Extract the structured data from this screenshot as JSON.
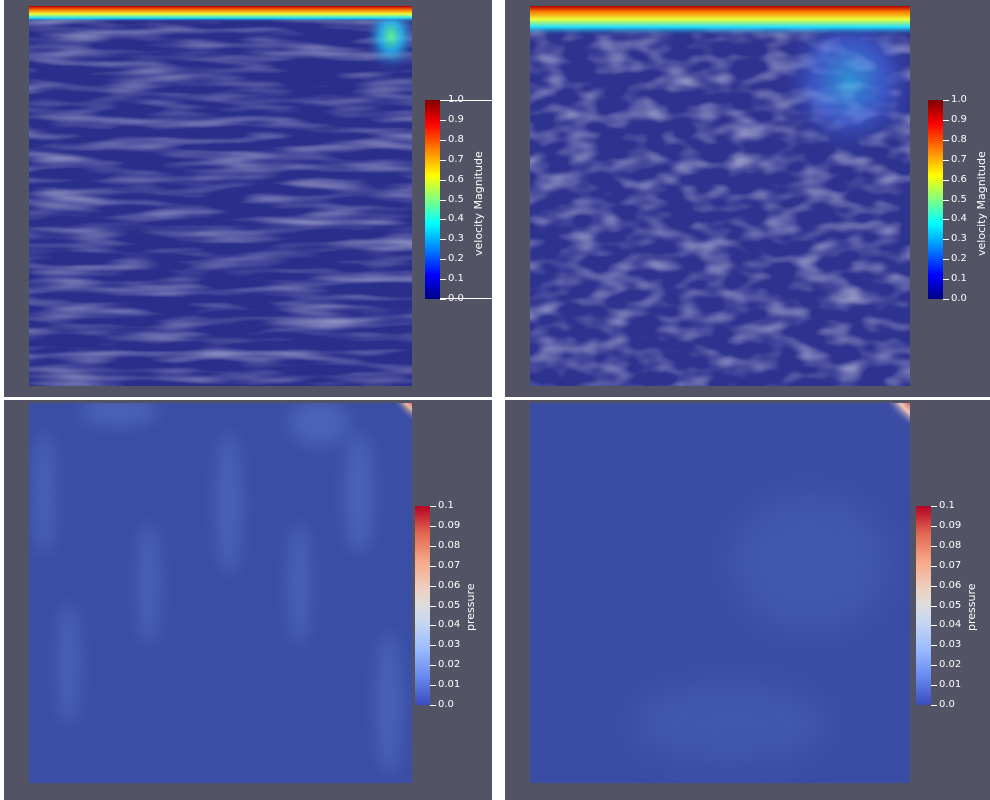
{
  "views": [
    {
      "id": "velocity-view-left",
      "field": "velocity",
      "variant": "fine",
      "colorbar": {
        "title": "velocity Magnitude",
        "labels": [
          "1.0",
          "0.9",
          "0.8",
          "0.7",
          "0.6",
          "0.5",
          "0.4",
          "0.3",
          "0.2",
          "0.1",
          "0.0"
        ]
      }
    },
    {
      "id": "velocity-view-right",
      "field": "velocity",
      "variant": "coarse",
      "colorbar": {
        "title": "velocity Magnitude",
        "labels": [
          "1.0",
          "0.9",
          "0.8",
          "0.7",
          "0.6",
          "0.5",
          "0.4",
          "0.3",
          "0.2",
          "0.1",
          "0.0"
        ]
      }
    },
    {
      "id": "pressure-view-left",
      "field": "pressure",
      "variant": "fine",
      "colorbar": {
        "title": "pressure",
        "labels": [
          "0.1",
          "0.09",
          "0.08",
          "0.07",
          "0.06",
          "0.05",
          "0.04",
          "0.03",
          "0.02",
          "0.01",
          "0.0"
        ]
      }
    },
    {
      "id": "pressure-view-right",
      "field": "pressure",
      "variant": "coarse",
      "colorbar": {
        "title": "pressure",
        "labels": [
          "0.1",
          "0.09",
          "0.08",
          "0.07",
          "0.06",
          "0.05",
          "0.04",
          "0.03",
          "0.02",
          "0.01",
          "0.0"
        ]
      }
    }
  ],
  "colors": {
    "background": "#525466",
    "separator": "#ffffff",
    "velocity_low": "#2b2f8c",
    "pressure_field": "#3b4ea6",
    "pressure_hot": "#9a0f1f"
  },
  "colormaps": {
    "velocity": [
      "#000084",
      "#0000ff",
      "#0080ff",
      "#00ffff",
      "#80ff80",
      "#ffff00",
      "#ff8000",
      "#ff0000",
      "#800000"
    ],
    "pressure": [
      "#3b4cc0",
      "#6788ee",
      "#9abbff",
      "#c9d7f0",
      "#edd1c2",
      "#f7a889",
      "#e26952",
      "#b40426"
    ]
  }
}
